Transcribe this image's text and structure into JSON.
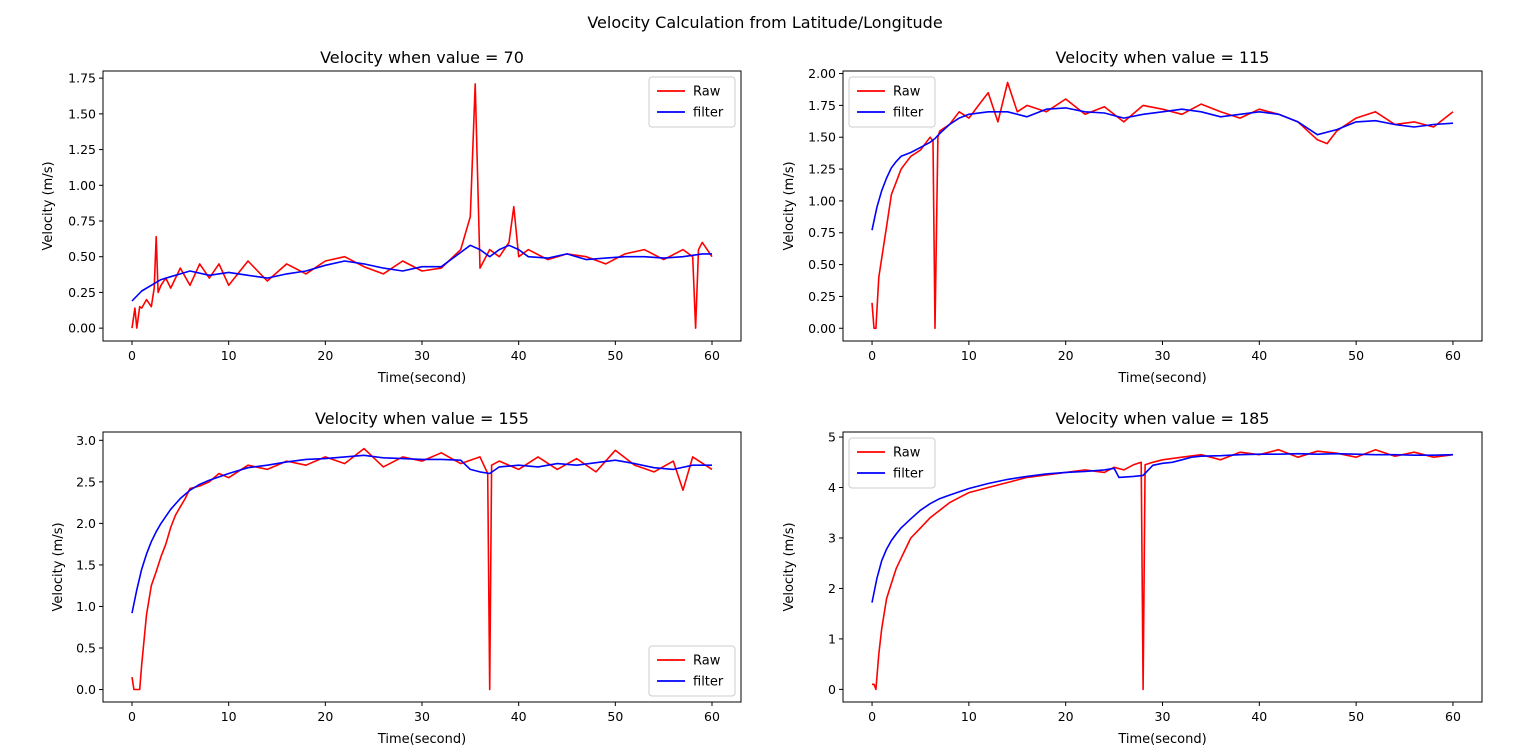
{
  "figure_title": "Velocity Calculation from Latitude/Longitude",
  "colors": {
    "raw": "#ff0000",
    "filter": "#0000ff"
  },
  "chart_data": [
    {
      "type": "line",
      "title": "Velocity when value = 70",
      "xlabel": "Time(second)",
      "ylabel": "Velocity (m/s)",
      "xlim": [
        -3,
        63
      ],
      "ylim": [
        -0.09,
        1.8
      ],
      "xticks": [
        0,
        10,
        20,
        30,
        40,
        50,
        60
      ],
      "yticks": [
        0.0,
        0.25,
        0.5,
        0.75,
        1.0,
        1.25,
        1.5,
        1.75
      ],
      "ytick_labels": [
        "0.00",
        "0.25",
        "0.50",
        "0.75",
        "1.00",
        "1.25",
        "1.50",
        "1.75"
      ],
      "legend": {
        "location": "upper right",
        "entries": [
          "Raw",
          "filter"
        ]
      },
      "series": [
        {
          "name": "Raw",
          "color": "#ff0000",
          "x": [
            0,
            0.3,
            0.5,
            0.8,
            1,
            1.5,
            2,
            2.3,
            2.5,
            2.7,
            3,
            3.5,
            4,
            5,
            6,
            7,
            8,
            9,
            10,
            12,
            14,
            16,
            18,
            20,
            22,
            24,
            26,
            28,
            30,
            32,
            34,
            35,
            35.5,
            36,
            37,
            38,
            39,
            39.5,
            40,
            41,
            43,
            45,
            47,
            49,
            51,
            53,
            55,
            57,
            58,
            58.3,
            58.6,
            59,
            60
          ],
          "y": [
            0.0,
            0.14,
            0.0,
            0.15,
            0.14,
            0.2,
            0.15,
            0.28,
            0.64,
            0.25,
            0.3,
            0.35,
            0.28,
            0.42,
            0.3,
            0.45,
            0.35,
            0.45,
            0.3,
            0.47,
            0.33,
            0.45,
            0.38,
            0.47,
            0.5,
            0.43,
            0.38,
            0.47,
            0.4,
            0.42,
            0.55,
            0.78,
            1.71,
            0.42,
            0.55,
            0.5,
            0.6,
            0.85,
            0.5,
            0.55,
            0.48,
            0.52,
            0.5,
            0.45,
            0.52,
            0.55,
            0.48,
            0.55,
            0.5,
            0.0,
            0.55,
            0.6,
            0.5
          ]
        },
        {
          "name": "filter",
          "color": "#0000ff",
          "x": [
            0,
            1,
            2,
            3,
            4,
            5,
            6,
            8,
            10,
            12,
            14,
            16,
            18,
            20,
            22,
            24,
            26,
            28,
            30,
            32,
            34,
            35,
            36,
            37,
            38,
            39,
            40,
            41,
            43,
            45,
            47,
            49,
            51,
            53,
            55,
            57,
            58,
            59,
            60
          ],
          "y": [
            0.19,
            0.26,
            0.3,
            0.34,
            0.36,
            0.38,
            0.4,
            0.37,
            0.39,
            0.37,
            0.35,
            0.38,
            0.4,
            0.44,
            0.47,
            0.45,
            0.42,
            0.4,
            0.43,
            0.43,
            0.53,
            0.58,
            0.55,
            0.5,
            0.55,
            0.58,
            0.55,
            0.5,
            0.49,
            0.52,
            0.48,
            0.49,
            0.5,
            0.5,
            0.49,
            0.5,
            0.51,
            0.52,
            0.52
          ]
        }
      ]
    },
    {
      "type": "line",
      "title": "Velocity when value = 115",
      "xlabel": "Time(second)",
      "ylabel": "Velocity (m/s)",
      "xlim": [
        -3,
        63
      ],
      "ylim": [
        -0.1,
        2.02
      ],
      "xticks": [
        0,
        10,
        20,
        30,
        40,
        50,
        60
      ],
      "yticks": [
        0.0,
        0.25,
        0.5,
        0.75,
        1.0,
        1.25,
        1.5,
        1.75,
        2.0
      ],
      "ytick_labels": [
        "0.00",
        "0.25",
        "0.50",
        "0.75",
        "1.00",
        "1.25",
        "1.50",
        "1.75",
        "2.00"
      ],
      "legend": {
        "location": "upper left",
        "entries": [
          "Raw",
          "filter"
        ]
      },
      "series": [
        {
          "name": "Raw",
          "color": "#ff0000",
          "x": [
            0,
            0.2,
            0.4,
            0.7,
            1,
            1.5,
            2,
            2.5,
            3,
            3.5,
            4,
            5,
            6,
            6.3,
            6.5,
            6.8,
            7,
            8,
            9,
            10,
            11,
            12,
            13,
            14,
            15,
            16,
            18,
            20,
            22,
            24,
            26,
            28,
            30,
            32,
            34,
            36,
            38,
            40,
            42,
            44,
            45,
            46,
            47,
            48,
            50,
            52,
            54,
            56,
            58,
            60
          ],
          "y": [
            0.2,
            0.0,
            0.0,
            0.4,
            0.55,
            0.8,
            1.05,
            1.15,
            1.25,
            1.3,
            1.35,
            1.4,
            1.5,
            1.47,
            0.0,
            1.5,
            1.55,
            1.6,
            1.7,
            1.65,
            1.75,
            1.85,
            1.62,
            1.93,
            1.7,
            1.75,
            1.7,
            1.8,
            1.68,
            1.74,
            1.62,
            1.75,
            1.72,
            1.68,
            1.76,
            1.7,
            1.65,
            1.72,
            1.68,
            1.62,
            1.55,
            1.48,
            1.45,
            1.55,
            1.65,
            1.7,
            1.6,
            1.62,
            1.58,
            1.7
          ]
        },
        {
          "name": "filter",
          "color": "#0000ff",
          "x": [
            0,
            0.5,
            1,
            1.5,
            2,
            2.5,
            3,
            4,
            5,
            6,
            6.5,
            7,
            8,
            9,
            10,
            12,
            14,
            16,
            18,
            20,
            22,
            24,
            26,
            28,
            30,
            32,
            34,
            36,
            38,
            40,
            42,
            44,
            46,
            48,
            50,
            52,
            54,
            56,
            58,
            60
          ],
          "y": [
            0.77,
            0.95,
            1.08,
            1.18,
            1.26,
            1.31,
            1.35,
            1.38,
            1.42,
            1.46,
            1.49,
            1.53,
            1.6,
            1.65,
            1.68,
            1.7,
            1.7,
            1.66,
            1.72,
            1.73,
            1.7,
            1.69,
            1.65,
            1.68,
            1.7,
            1.72,
            1.7,
            1.66,
            1.68,
            1.7,
            1.68,
            1.62,
            1.52,
            1.56,
            1.62,
            1.63,
            1.6,
            1.58,
            1.6,
            1.61
          ]
        }
      ]
    },
    {
      "type": "line",
      "title": "Velocity when value = 155",
      "xlabel": "Time(second)",
      "ylabel": "Velocity (m/s)",
      "xlim": [
        -3,
        63
      ],
      "ylim": [
        -0.15,
        3.1
      ],
      "xticks": [
        0,
        10,
        20,
        30,
        40,
        50,
        60
      ],
      "yticks": [
        0.0,
        0.5,
        1.0,
        1.5,
        2.0,
        2.5,
        3.0
      ],
      "ytick_labels": [
        "0.0",
        "0.5",
        "1.0",
        "1.5",
        "2.0",
        "2.5",
        "3.0"
      ],
      "legend": {
        "location": "lower right",
        "entries": [
          "Raw",
          "filter"
        ]
      },
      "series": [
        {
          "name": "Raw",
          "color": "#ff0000",
          "x": [
            0,
            0.2,
            0.5,
            0.8,
            1,
            1.5,
            2,
            2.5,
            3,
            3.5,
            4,
            4.5,
            5,
            5.5,
            6,
            7,
            8,
            9,
            10,
            12,
            14,
            16,
            18,
            20,
            22,
            24,
            26,
            28,
            30,
            32,
            34,
            36,
            36.8,
            37,
            37.2,
            38,
            40,
            42,
            44,
            46,
            48,
            50,
            52,
            54,
            56,
            57,
            58,
            60
          ],
          "y": [
            0.15,
            0.0,
            0.0,
            0.0,
            0.3,
            0.9,
            1.25,
            1.42,
            1.6,
            1.75,
            1.95,
            2.1,
            2.2,
            2.3,
            2.42,
            2.45,
            2.5,
            2.6,
            2.55,
            2.7,
            2.65,
            2.75,
            2.7,
            2.8,
            2.72,
            2.9,
            2.68,
            2.8,
            2.75,
            2.85,
            2.72,
            2.8,
            2.6,
            0.0,
            2.7,
            2.75,
            2.65,
            2.8,
            2.65,
            2.78,
            2.62,
            2.88,
            2.7,
            2.62,
            2.75,
            2.4,
            2.8,
            2.65
          ]
        },
        {
          "name": "filter",
          "color": "#0000ff",
          "x": [
            0,
            0.5,
            1,
            1.5,
            2,
            2.5,
            3,
            4,
            5,
            6,
            7,
            8,
            10,
            12,
            14,
            16,
            18,
            20,
            22,
            24,
            26,
            28,
            30,
            32,
            34,
            35,
            36,
            37,
            38,
            40,
            42,
            44,
            46,
            48,
            50,
            52,
            54,
            56,
            58,
            60
          ],
          "y": [
            0.92,
            1.2,
            1.45,
            1.63,
            1.78,
            1.9,
            2.0,
            2.17,
            2.3,
            2.4,
            2.47,
            2.52,
            2.6,
            2.67,
            2.7,
            2.74,
            2.77,
            2.78,
            2.8,
            2.82,
            2.79,
            2.78,
            2.77,
            2.77,
            2.76,
            2.65,
            2.62,
            2.6,
            2.68,
            2.7,
            2.68,
            2.72,
            2.7,
            2.73,
            2.76,
            2.72,
            2.67,
            2.65,
            2.7,
            2.7
          ]
        }
      ]
    },
    {
      "type": "line",
      "title": "Velocity when value = 185",
      "xlabel": "Time(second)",
      "ylabel": "Velocity (m/s)",
      "xlim": [
        -3,
        63
      ],
      "ylim": [
        -0.25,
        5.1
      ],
      "xticks": [
        0,
        10,
        20,
        30,
        40,
        50,
        60
      ],
      "yticks": [
        0,
        1,
        2,
        3,
        4,
        5
      ],
      "ytick_labels": [
        "0",
        "1",
        "2",
        "3",
        "4",
        "5"
      ],
      "legend": {
        "location": "upper left",
        "entries": [
          "Raw",
          "filter"
        ]
      },
      "series": [
        {
          "name": "Raw",
          "color": "#ff0000",
          "x": [
            0,
            0.2,
            0.4,
            0.7,
            1,
            1.5,
            2,
            2.5,
            3,
            3.5,
            4,
            5,
            6,
            7,
            8,
            9,
            10,
            12,
            14,
            16,
            18,
            20,
            22,
            24,
            25,
            26,
            27,
            27.8,
            28,
            28.2,
            29,
            30,
            32,
            34,
            36,
            38,
            40,
            42,
            44,
            46,
            48,
            50,
            52,
            54,
            56,
            58,
            60
          ],
          "y": [
            0.1,
            0.1,
            0.0,
            0.7,
            1.2,
            1.8,
            2.1,
            2.4,
            2.6,
            2.8,
            3.0,
            3.2,
            3.4,
            3.55,
            3.7,
            3.8,
            3.9,
            4.0,
            4.1,
            4.2,
            4.25,
            4.3,
            4.35,
            4.3,
            4.4,
            4.35,
            4.45,
            4.5,
            0.0,
            4.45,
            4.5,
            4.55,
            4.6,
            4.65,
            4.55,
            4.7,
            4.65,
            4.75,
            4.6,
            4.72,
            4.68,
            4.6,
            4.75,
            4.62,
            4.7,
            4.6,
            4.65
          ]
        },
        {
          "name": "filter",
          "color": "#0000ff",
          "x": [
            0,
            0.5,
            1,
            1.5,
            2,
            2.5,
            3,
            4,
            5,
            6,
            7,
            8,
            10,
            12,
            14,
            16,
            18,
            20,
            22,
            24,
            25,
            25.5,
            27,
            28,
            29,
            30,
            31,
            32,
            33,
            34,
            36,
            38,
            40,
            42,
            44,
            46,
            48,
            50,
            52,
            54,
            56,
            58,
            60
          ],
          "y": [
            1.72,
            2.2,
            2.55,
            2.78,
            2.95,
            3.08,
            3.2,
            3.38,
            3.55,
            3.68,
            3.78,
            3.85,
            3.98,
            4.08,
            4.16,
            4.22,
            4.27,
            4.3,
            4.32,
            4.35,
            4.38,
            4.2,
            4.22,
            4.24,
            4.44,
            4.48,
            4.5,
            4.55,
            4.6,
            4.62,
            4.63,
            4.65,
            4.66,
            4.66,
            4.67,
            4.66,
            4.67,
            4.66,
            4.65,
            4.65,
            4.64,
            4.64,
            4.65
          ]
        }
      ]
    }
  ]
}
